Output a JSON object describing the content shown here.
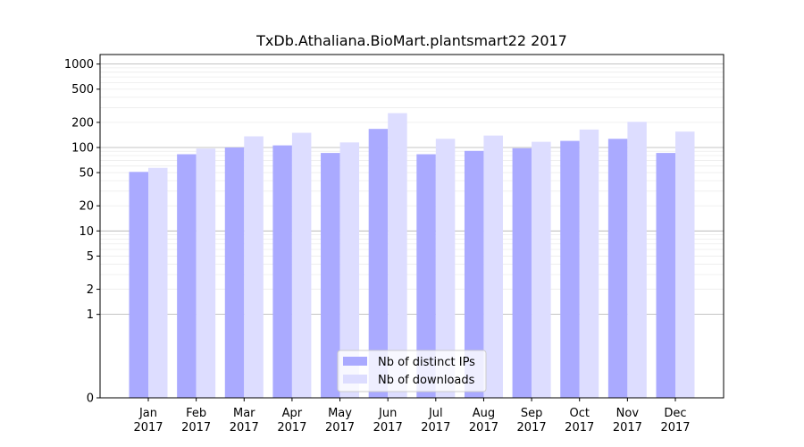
{
  "chart_data": {
    "type": "bar",
    "title": "TxDb.Athaliana.BioMart.plantsmart22 2017",
    "xlabel": "",
    "ylabel": "",
    "yscale": "symlog",
    "ylim": [
      0,
      1300
    ],
    "yticks": [
      "0",
      "1",
      "2",
      "5",
      "10",
      "20",
      "50",
      "100",
      "200",
      "500",
      "1000"
    ],
    "categories": [
      [
        "Jan",
        "2017"
      ],
      [
        "Feb",
        "2017"
      ],
      [
        "Mar",
        "2017"
      ],
      [
        "Apr",
        "2017"
      ],
      [
        "May",
        "2017"
      ],
      [
        "Jun",
        "2017"
      ],
      [
        "Jul",
        "2017"
      ],
      [
        "Aug",
        "2017"
      ],
      [
        "Sep",
        "2017"
      ],
      [
        "Oct",
        "2017"
      ],
      [
        "Nov",
        "2017"
      ],
      [
        "Dec",
        "2017"
      ]
    ],
    "series": [
      {
        "name": "Nb of distinct IPs",
        "color": "#aaaaff",
        "values": [
          51,
          83,
          100,
          106,
          86,
          167,
          83,
          91,
          98,
          120,
          127,
          86
        ]
      },
      {
        "name": "Nb of downloads",
        "color": "#ddddff",
        "values": [
          57,
          97,
          136,
          150,
          115,
          258,
          127,
          139,
          117,
          164,
          203,
          155
        ]
      }
    ],
    "legend_position": "bottom-center",
    "grid": true
  }
}
